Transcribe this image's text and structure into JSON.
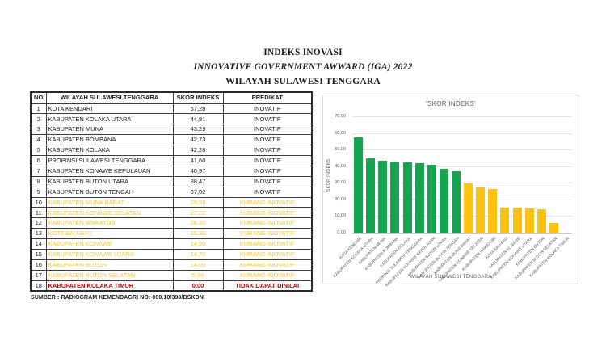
{
  "page": {
    "title_line1": "INDEKS INOVASI",
    "title_line2": "INNOVATIVE GOVERNMENT AWWARD (IGA)  2022",
    "title_line3": "WILAYAH SULAWESI TENGGARA",
    "source": "SUMBER : RADIOGRAM KEMENDAGRI NO: 000.10/398/BSKDN"
  },
  "colors": {
    "inovatif_text": "#1a1a1a",
    "kurang_text": "#fdc530",
    "tidak_text": "#c00000",
    "bar_green": "#17a34f",
    "bar_yellow": "#fdc112"
  },
  "table": {
    "headers": [
      "NO",
      "WILAYAH SULAWESI TENGGARA",
      "SKOR INDEKS",
      "PREDIKAT"
    ],
    "rows": [
      {
        "no": "1",
        "wilayah": "KOTA KENDARI",
        "skor": "57,28",
        "predikat": "INOVATIF",
        "status": "inovatif"
      },
      {
        "no": "2",
        "wilayah": "KABUPATEN KOLAKA UTARA",
        "skor": "44,81",
        "predikat": "INOVATIF",
        "status": "inovatif"
      },
      {
        "no": "3",
        "wilayah": "KABUPATEN MUNA",
        "skor": "43,29",
        "predikat": "INOVATIF",
        "status": "inovatif"
      },
      {
        "no": "4",
        "wilayah": "KABUPATEN BOMBANA",
        "skor": "42,73",
        "predikat": "INOVATIF",
        "status": "inovatif"
      },
      {
        "no": "5",
        "wilayah": "KABUPATEN KOLAKA",
        "skor": "42,28",
        "predikat": "INOVATIF",
        "status": "inovatif"
      },
      {
        "no": "6",
        "wilayah": "PROPINSI SULAWESI TENGGARA",
        "skor": "41,60",
        "predikat": "INOVATIF",
        "status": "inovatif"
      },
      {
        "no": "7",
        "wilayah": "KABUPATEN KONAWE KEPULAUAN",
        "skor": "40,97",
        "predikat": "INOVATIF",
        "status": "inovatif"
      },
      {
        "no": "8",
        "wilayah": "KABUPATEN BUTON UTARA",
        "skor": "38,47",
        "predikat": "INOVATIF",
        "status": "inovatif"
      },
      {
        "no": "9",
        "wilayah": "KABUPATEN BUTON TENGAH",
        "skor": "37,02",
        "predikat": "INOVATIF",
        "status": "inovatif"
      },
      {
        "no": "10",
        "wilayah": "KABUPATEN MUNA BARAT",
        "skor": "29,56",
        "predikat": "KURANG INOVATIF",
        "status": "kurang"
      },
      {
        "no": "11",
        "wilayah": "KABUPATEN KONAWE SELATAN",
        "skor": "27,20",
        "predikat": "KURANG INOVATIF",
        "status": "kurang"
      },
      {
        "no": "12",
        "wilayah": "KABUPATEN WAKATOBI",
        "skor": "26,30",
        "predikat": "KURANG INOVATIF",
        "status": "kurang"
      },
      {
        "no": "13",
        "wilayah": "KOTA BAU-BAU",
        "skor": "15,30",
        "predikat": "KURANG INOVATIF",
        "status": "kurang"
      },
      {
        "no": "14",
        "wilayah": "KABUPATEN KONAWE",
        "skor": "14,90",
        "predikat": "KURANG INOVATIF",
        "status": "kurang"
      },
      {
        "no": "15",
        "wilayah": "KABUPATEN KONAWE UTARA",
        "skor": "14,70",
        "predikat": "KURANG INOVATIF",
        "status": "kurang"
      },
      {
        "no": "16",
        "wilayah": "KABUPATEN BUTON",
        "skor": "14,00",
        "predikat": "KURANG INOVATIF",
        "status": "kurang"
      },
      {
        "no": "17",
        "wilayah": "KABUPATEN BUTON SELATAN",
        "skor": "5,80",
        "predikat": "KURANG INOVATIF",
        "status": "kurang"
      },
      {
        "no": "18",
        "wilayah": "KABUPATEN KOLAKA TIMUR",
        "skor": "0,00",
        "predikat": "TIDAK DAPAT DINILAI",
        "status": "tidak"
      }
    ]
  },
  "chart_data": {
    "type": "bar",
    "title": "'SKOR INDEKS'",
    "xlabel": "WILAYAH SULAWESI TENGGARA",
    "ylabel": "SKOR INDEKS",
    "categories": [
      "KOTA KENDARI",
      "KABUPATEN KOLAKA UTARA",
      "KABUPATEN MUNA",
      "KABUPATEN BOMBANA",
      "KABUPATEN KOLAKA",
      "PROPINSI SULAWESI TENGGARA",
      "KABUPATEN KONAWE KEPULAUAN",
      "KABUPATEN BUTON UTARA",
      "KABUPATEN BUTON TENGAH",
      "KABUPATEN MUNA BARAT",
      "KABUPATEN KONAWE SELATAN",
      "KABUPATEN WAKATOBI",
      "KOTA BAU-BAU",
      "KABUPATEN KONAWE",
      "KABUPATEN KONAWE UTARA",
      "KABUPATEN BUTON",
      "KABUPATEN BUTON SELATAN",
      "KABUPATEN KOLAKA TIMUR"
    ],
    "values": [
      57.28,
      44.81,
      43.29,
      42.73,
      42.28,
      41.6,
      40.97,
      38.47,
      37.02,
      29.56,
      27.2,
      26.3,
      15.3,
      14.9,
      14.7,
      14.0,
      5.8,
      0.0
    ],
    "bar_colors": [
      "#17a34f",
      "#17a34f",
      "#17a34f",
      "#17a34f",
      "#17a34f",
      "#17a34f",
      "#17a34f",
      "#17a34f",
      "#17a34f",
      "#fdc112",
      "#fdc112",
      "#fdc112",
      "#fdc112",
      "#fdc112",
      "#fdc112",
      "#fdc112",
      "#fdc112",
      "#fdc112"
    ],
    "ylim": [
      0,
      70
    ],
    "y_ticks": [
      "0,00",
      "10,00",
      "20,00",
      "30,00",
      "40,00",
      "50,00",
      "60,00",
      "70,00"
    ],
    "grid": true,
    "legend": false
  }
}
